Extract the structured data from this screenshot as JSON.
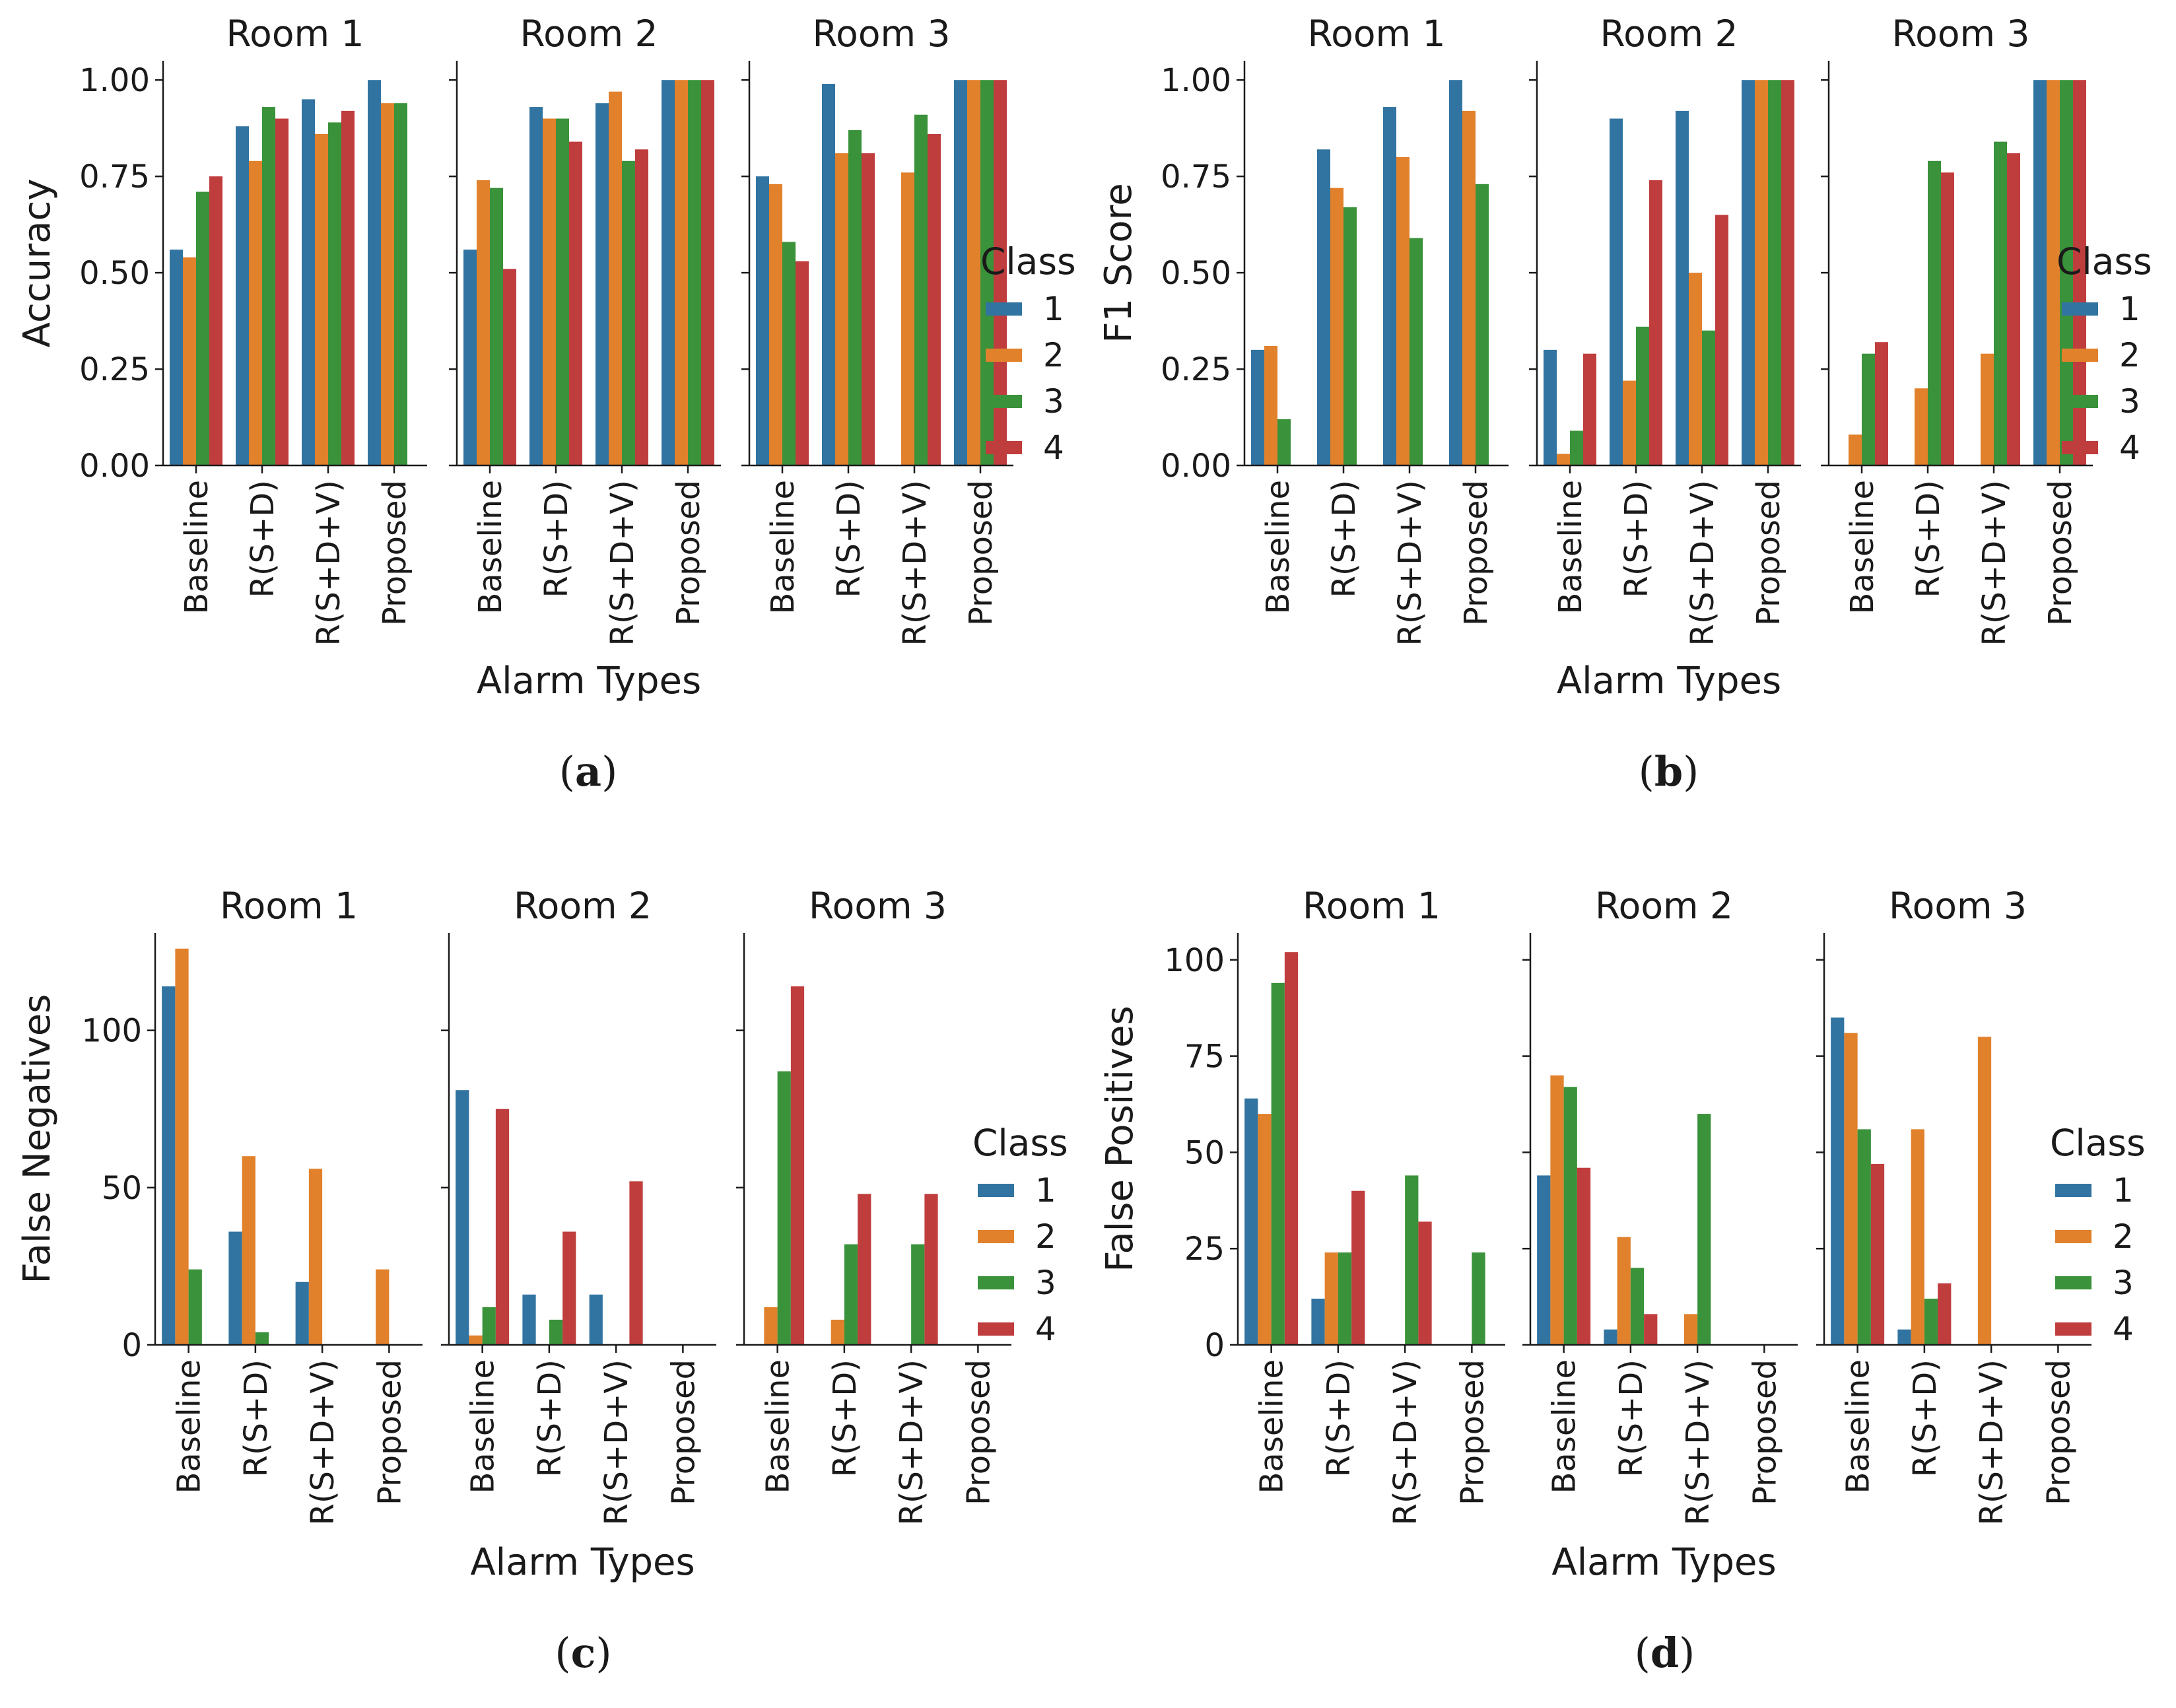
{
  "colors": {
    "1": "#3274a1",
    "2": "#e1812c",
    "3": "#3a923a",
    "4": "#c03d3e"
  },
  "legend": {
    "title": "Class",
    "labels": [
      "1",
      "2",
      "3",
      "4"
    ]
  },
  "chart_data": [
    {
      "type": "bar",
      "caption_letter": "a",
      "ylabel": "Accuracy",
      "xlabel": "Alarm Types",
      "ylim": [
        0,
        1.05
      ],
      "yticks": [
        0,
        0.25,
        0.5,
        0.75,
        1.0
      ],
      "ytick_labels": [
        "0.00",
        "0.25",
        "0.50",
        "0.75",
        "1.00"
      ],
      "categories": [
        "Baseline",
        "R(S+D)",
        "R(S+D+V)",
        "Proposed"
      ],
      "facets": [
        {
          "title": "Room 1",
          "series": [
            {
              "name": "1",
              "values": [
                0.56,
                0.88,
                0.95,
                1.0
              ]
            },
            {
              "name": "2",
              "values": [
                0.54,
                0.79,
                0.86,
                0.94
              ]
            },
            {
              "name": "3",
              "values": [
                0.71,
                0.93,
                0.89,
                0.94
              ]
            },
            {
              "name": "4",
              "values": [
                0.75,
                0.9,
                0.92,
                0
              ]
            }
          ]
        },
        {
          "title": "Room 2",
          "series": [
            {
              "name": "1",
              "values": [
                0.56,
                0.93,
                0.94,
                1.0
              ]
            },
            {
              "name": "2",
              "values": [
                0.74,
                0.9,
                0.97,
                1.0
              ]
            },
            {
              "name": "3",
              "values": [
                0.72,
                0.9,
                0.79,
                1.0
              ]
            },
            {
              "name": "4",
              "values": [
                0.51,
                0.84,
                0.82,
                1.0
              ]
            }
          ]
        },
        {
          "title": "Room 3",
          "series": [
            {
              "name": "1",
              "values": [
                0.75,
                0.99,
                0,
                1.0
              ]
            },
            {
              "name": "2",
              "values": [
                0.73,
                0.81,
                0.76,
                1.0
              ]
            },
            {
              "name": "3",
              "values": [
                0.58,
                0.87,
                0.91,
                1.0
              ]
            },
            {
              "name": "4",
              "values": [
                0.53,
                0.81,
                0.86,
                1.0
              ]
            }
          ]
        }
      ]
    },
    {
      "type": "bar",
      "caption_letter": "b",
      "ylabel": "F1 Score",
      "xlabel": "Alarm Types",
      "ylim": [
        0,
        1.05
      ],
      "yticks": [
        0,
        0.25,
        0.5,
        0.75,
        1.0
      ],
      "ytick_labels": [
        "0.00",
        "0.25",
        "0.50",
        "0.75",
        "1.00"
      ],
      "categories": [
        "Baseline",
        "R(S+D)",
        "R(S+D+V)",
        "Proposed"
      ],
      "facets": [
        {
          "title": "Room 1",
          "series": [
            {
              "name": "1",
              "values": [
                0.3,
                0.82,
                0.93,
                1.0
              ]
            },
            {
              "name": "2",
              "values": [
                0.31,
                0.72,
                0.8,
                0.92
              ]
            },
            {
              "name": "3",
              "values": [
                0.12,
                0.67,
                0.59,
                0.73
              ]
            },
            {
              "name": "4",
              "values": [
                0,
                0,
                0,
                0
              ]
            }
          ]
        },
        {
          "title": "Room 2",
          "series": [
            {
              "name": "1",
              "values": [
                0.3,
                0.9,
                0.92,
                1.0
              ]
            },
            {
              "name": "2",
              "values": [
                0.03,
                0.22,
                0.5,
                1.0
              ]
            },
            {
              "name": "3",
              "values": [
                0.09,
                0.36,
                0.35,
                1.0
              ]
            },
            {
              "name": "4",
              "values": [
                0.29,
                0.74,
                0.65,
                1.0
              ]
            }
          ]
        },
        {
          "title": "Room 3",
          "series": [
            {
              "name": "1",
              "values": [
                0,
                0,
                0,
                1.0
              ]
            },
            {
              "name": "2",
              "values": [
                0.08,
                0.2,
                0.29,
                1.0
              ]
            },
            {
              "name": "3",
              "values": [
                0.29,
                0.79,
                0.84,
                1.0
              ]
            },
            {
              "name": "4",
              "values": [
                0.32,
                0.76,
                0.81,
                1.0
              ]
            }
          ]
        }
      ]
    },
    {
      "type": "bar",
      "caption_letter": "c",
      "ylabel": "False Negatives",
      "xlabel": "Alarm Types",
      "ylim": [
        0,
        131
      ],
      "yticks": [
        0,
        50,
        100
      ],
      "ytick_labels": [
        "0",
        "50",
        "100"
      ],
      "categories": [
        "Baseline",
        "R(S+D)",
        "R(S+D+V)",
        "Proposed"
      ],
      "facets": [
        {
          "title": "Room 1",
          "series": [
            {
              "name": "1",
              "values": [
                114,
                36,
                20,
                0
              ]
            },
            {
              "name": "2",
              "values": [
                126,
                60,
                56,
                24
              ]
            },
            {
              "name": "3",
              "values": [
                24,
                4,
                0,
                0
              ]
            },
            {
              "name": "4",
              "values": [
                0,
                0,
                0,
                0
              ]
            }
          ]
        },
        {
          "title": "Room 2",
          "series": [
            {
              "name": "1",
              "values": [
                81,
                16,
                16,
                0
              ]
            },
            {
              "name": "2",
              "values": [
                3,
                0,
                0,
                0
              ]
            },
            {
              "name": "3",
              "values": [
                12,
                8,
                0,
                0
              ]
            },
            {
              "name": "4",
              "values": [
                75,
                36,
                52,
                0
              ]
            }
          ]
        },
        {
          "title": "Room 3",
          "series": [
            {
              "name": "1",
              "values": [
                0,
                0,
                0,
                0
              ]
            },
            {
              "name": "2",
              "values": [
                12,
                8,
                0,
                0
              ]
            },
            {
              "name": "3",
              "values": [
                87,
                32,
                32,
                0
              ]
            },
            {
              "name": "4",
              "values": [
                114,
                48,
                48,
                0
              ]
            }
          ]
        }
      ]
    },
    {
      "type": "bar",
      "caption_letter": "d",
      "ylabel": "False Positives",
      "xlabel": "Alarm Types",
      "ylim": [
        0,
        107
      ],
      "yticks": [
        0,
        25,
        50,
        75,
        100
      ],
      "ytick_labels": [
        "0",
        "25",
        "50",
        "75",
        "100"
      ],
      "categories": [
        "Baseline",
        "R(S+D)",
        "R(S+D+V)",
        "Proposed"
      ],
      "facets": [
        {
          "title": "Room 1",
          "series": [
            {
              "name": "1",
              "values": [
                64,
                12,
                0,
                0
              ]
            },
            {
              "name": "2",
              "values": [
                60,
                24,
                0,
                0
              ]
            },
            {
              "name": "3",
              "values": [
                94,
                24,
                44,
                24
              ]
            },
            {
              "name": "4",
              "values": [
                102,
                40,
                32,
                0
              ]
            }
          ]
        },
        {
          "title": "Room 2",
          "series": [
            {
              "name": "1",
              "values": [
                44,
                4,
                0,
                0
              ]
            },
            {
              "name": "2",
              "values": [
                70,
                28,
                8,
                0
              ]
            },
            {
              "name": "3",
              "values": [
                67,
                20,
                60,
                0
              ]
            },
            {
              "name": "4",
              "values": [
                46,
                8,
                0,
                0
              ]
            }
          ]
        },
        {
          "title": "Room 3",
          "series": [
            {
              "name": "1",
              "values": [
                85,
                4,
                0,
                0
              ]
            },
            {
              "name": "2",
              "values": [
                81,
                56,
                80,
                0
              ]
            },
            {
              "name": "3",
              "values": [
                56,
                12,
                0,
                0
              ]
            },
            {
              "name": "4",
              "values": [
                47,
                16,
                0,
                0
              ]
            }
          ]
        }
      ]
    }
  ]
}
